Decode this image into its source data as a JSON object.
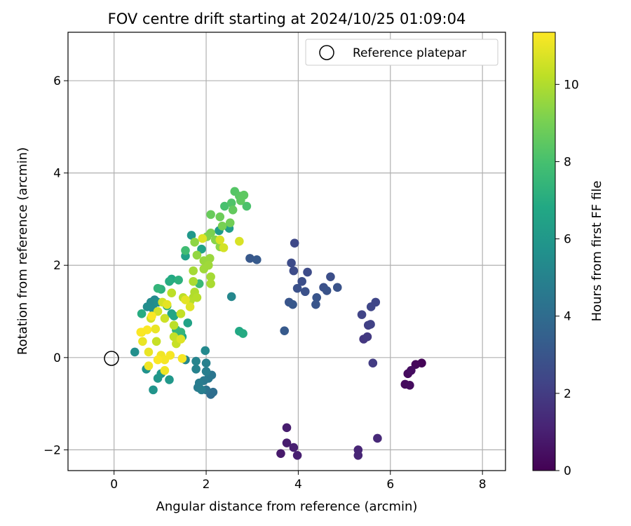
{
  "chart_data": {
    "type": "scatter",
    "title": "FOV centre drift starting at 2024/10/25 01:09:04",
    "xlabel": "Angular distance from reference (arcmin)",
    "ylabel": "Rotation from reference (arcmin)",
    "xlim": [
      -1,
      8.5
    ],
    "ylim": [
      -2.45,
      7.05
    ],
    "xticks": [
      0,
      2,
      4,
      6,
      8
    ],
    "yticks": [
      -2,
      0,
      2,
      4,
      6
    ],
    "xtick_labels": [
      "0",
      "2",
      "4",
      "6",
      "8"
    ],
    "ytick_labels": [
      "−2",
      "0",
      "2",
      "4",
      "6"
    ],
    "grid": true,
    "legend": {
      "position": "top-right",
      "entries": [
        "Reference platepar"
      ]
    },
    "reference_point": {
      "x": 0,
      "y": 0,
      "label": "Reference platepar"
    },
    "colorbar": {
      "label": "Hours from first FF file",
      "colormap": "viridis",
      "range": [
        0,
        11.35
      ],
      "ticks": [
        0,
        2,
        4,
        6,
        8,
        10
      ],
      "tick_labels": [
        "0",
        "2",
        "4",
        "6",
        "8",
        "10"
      ]
    },
    "color_variable": "hours",
    "points": [
      {
        "x": 6.68,
        "y": -0.12,
        "h": 0.1
      },
      {
        "x": 6.55,
        "y": -0.15,
        "h": 0.2
      },
      {
        "x": 6.38,
        "y": -0.35,
        "h": 0.3
      },
      {
        "x": 6.32,
        "y": -0.58,
        "h": 0.3
      },
      {
        "x": 6.42,
        "y": -0.6,
        "h": 0.35
      },
      {
        "x": 6.45,
        "y": -0.28,
        "h": 0.4
      },
      {
        "x": 3.62,
        "y": -2.08,
        "h": 0.8
      },
      {
        "x": 3.75,
        "y": -1.52,
        "h": 0.9
      },
      {
        "x": 3.75,
        "y": -1.85,
        "h": 0.9
      },
      {
        "x": 3.9,
        "y": -1.95,
        "h": 1.0
      },
      {
        "x": 3.98,
        "y": -2.12,
        "h": 1.0
      },
      {
        "x": 5.3,
        "y": -2.0,
        "h": 1.2
      },
      {
        "x": 5.3,
        "y": -2.12,
        "h": 1.2
      },
      {
        "x": 5.72,
        "y": -1.75,
        "h": 1.3
      },
      {
        "x": 5.42,
        "y": 0.4,
        "h": 1.8
      },
      {
        "x": 5.5,
        "y": 0.45,
        "h": 1.9
      },
      {
        "x": 5.62,
        "y": -0.12,
        "h": 2.0
      },
      {
        "x": 5.52,
        "y": 0.7,
        "h": 2.1
      },
      {
        "x": 5.57,
        "y": 0.72,
        "h": 2.2
      },
      {
        "x": 5.38,
        "y": 0.93,
        "h": 2.3
      },
      {
        "x": 5.58,
        "y": 1.1,
        "h": 2.4
      },
      {
        "x": 5.68,
        "y": 1.2,
        "h": 2.4
      },
      {
        "x": 3.92,
        "y": 2.48,
        "h": 2.5
      },
      {
        "x": 3.85,
        "y": 2.05,
        "h": 2.6
      },
      {
        "x": 3.9,
        "y": 1.88,
        "h": 2.6
      },
      {
        "x": 4.2,
        "y": 1.85,
        "h": 2.6
      },
      {
        "x": 4.08,
        "y": 1.65,
        "h": 2.7
      },
      {
        "x": 4.7,
        "y": 1.75,
        "h": 2.7
      },
      {
        "x": 3.98,
        "y": 1.5,
        "h": 2.8
      },
      {
        "x": 4.15,
        "y": 1.43,
        "h": 2.8
      },
      {
        "x": 4.55,
        "y": 1.52,
        "h": 2.8
      },
      {
        "x": 4.62,
        "y": 1.45,
        "h": 2.9
      },
      {
        "x": 4.85,
        "y": 1.52,
        "h": 2.9
      },
      {
        "x": 4.4,
        "y": 1.3,
        "h": 3.0
      },
      {
        "x": 4.38,
        "y": 1.15,
        "h": 3.0
      },
      {
        "x": 3.8,
        "y": 1.2,
        "h": 3.0
      },
      {
        "x": 3.88,
        "y": 1.15,
        "h": 3.1
      },
      {
        "x": 2.95,
        "y": 2.15,
        "h": 3.1
      },
      {
        "x": 3.1,
        "y": 2.12,
        "h": 3.2
      },
      {
        "x": 3.7,
        "y": 0.58,
        "h": 3.2
      },
      {
        "x": 2.1,
        "y": -0.8,
        "h": 4.0
      },
      {
        "x": 2.15,
        "y": -0.75,
        "h": 4.1
      },
      {
        "x": 2.0,
        "y": -0.7,
        "h": 4.3
      },
      {
        "x": 2.12,
        "y": -0.38,
        "h": 4.4
      },
      {
        "x": 2.05,
        "y": -0.45,
        "h": 4.5
      },
      {
        "x": 1.95,
        "y": -0.5,
        "h": 4.6
      },
      {
        "x": 1.85,
        "y": -0.55,
        "h": 4.7
      },
      {
        "x": 1.82,
        "y": -0.65,
        "h": 4.7
      },
      {
        "x": 1.9,
        "y": -0.7,
        "h": 4.8
      },
      {
        "x": 2.0,
        "y": -0.3,
        "h": 4.8
      },
      {
        "x": 2.0,
        "y": -0.12,
        "h": 4.9
      },
      {
        "x": 1.78,
        "y": -0.25,
        "h": 5.0
      },
      {
        "x": 1.78,
        "y": -0.08,
        "h": 5.1
      },
      {
        "x": 1.55,
        "y": -0.05,
        "h": 5.2
      },
      {
        "x": 2.55,
        "y": 1.32,
        "h": 5.2
      },
      {
        "x": 1.98,
        "y": 0.15,
        "h": 5.3
      },
      {
        "x": 0.88,
        "y": 1.25,
        "h": 5.3
      },
      {
        "x": 0.8,
        "y": 1.2,
        "h": 5.4
      },
      {
        "x": 0.72,
        "y": 1.1,
        "h": 5.5
      },
      {
        "x": 0.85,
        "y": 1.05,
        "h": 5.5
      },
      {
        "x": 0.95,
        "y": 1.2,
        "h": 5.6
      },
      {
        "x": 0.45,
        "y": 0.12,
        "h": 5.6
      },
      {
        "x": 0.7,
        "y": -0.25,
        "h": 5.7
      },
      {
        "x": 0.85,
        "y": -0.7,
        "h": 5.8
      },
      {
        "x": 0.95,
        "y": -0.45,
        "h": 5.9
      },
      {
        "x": 1.02,
        "y": -0.35,
        "h": 6.0
      },
      {
        "x": 1.2,
        "y": -0.48,
        "h": 6.0
      },
      {
        "x": 1.68,
        "y": 2.65,
        "h": 6.0
      },
      {
        "x": 2.28,
        "y": 2.75,
        "h": 6.2
      },
      {
        "x": 2.5,
        "y": 2.8,
        "h": 6.3
      },
      {
        "x": 1.55,
        "y": 2.2,
        "h": 6.4
      },
      {
        "x": 1.9,
        "y": 2.35,
        "h": 6.5
      },
      {
        "x": 1.6,
        "y": 0.75,
        "h": 6.5
      },
      {
        "x": 1.25,
        "y": 0.95,
        "h": 6.6
      },
      {
        "x": 1.3,
        "y": 0.9,
        "h": 6.7
      },
      {
        "x": 1.48,
        "y": 0.45,
        "h": 6.7
      },
      {
        "x": 1.25,
        "y": 1.7,
        "h": 6.8
      },
      {
        "x": 2.72,
        "y": 0.57,
        "h": 6.8
      },
      {
        "x": 2.8,
        "y": 0.52,
        "h": 6.9
      },
      {
        "x": 0.6,
        "y": 0.95,
        "h": 7.0
      },
      {
        "x": 1.2,
        "y": 1.65,
        "h": 7.0
      },
      {
        "x": 1.15,
        "y": 1.12,
        "h": 7.1
      },
      {
        "x": 1.02,
        "y": 1.48,
        "h": 7.2
      },
      {
        "x": 1.4,
        "y": 1.68,
        "h": 7.2
      },
      {
        "x": 0.95,
        "y": 1.5,
        "h": 7.4
      },
      {
        "x": 1.45,
        "y": 0.55,
        "h": 7.4
      },
      {
        "x": 1.35,
        "y": 0.6,
        "h": 7.5
      },
      {
        "x": 1.85,
        "y": 1.6,
        "h": 7.6
      },
      {
        "x": 1.55,
        "y": 2.32,
        "h": 7.8
      },
      {
        "x": 2.4,
        "y": 3.28,
        "h": 8.0
      },
      {
        "x": 2.88,
        "y": 3.28,
        "h": 8.1
      },
      {
        "x": 2.55,
        "y": 3.35,
        "h": 8.2
      },
      {
        "x": 2.62,
        "y": 3.6,
        "h": 8.3
      },
      {
        "x": 2.72,
        "y": 3.5,
        "h": 8.4
      },
      {
        "x": 2.82,
        "y": 3.52,
        "h": 8.5
      },
      {
        "x": 2.75,
        "y": 3.4,
        "h": 8.5
      },
      {
        "x": 2.58,
        "y": 3.2,
        "h": 8.6
      },
      {
        "x": 2.1,
        "y": 3.1,
        "h": 8.7
      },
      {
        "x": 2.3,
        "y": 3.05,
        "h": 8.8
      },
      {
        "x": 2.52,
        "y": 2.92,
        "h": 8.9
      },
      {
        "x": 2.35,
        "y": 2.85,
        "h": 9.0
      },
      {
        "x": 2.1,
        "y": 2.7,
        "h": 9.1
      },
      {
        "x": 2.02,
        "y": 2.62,
        "h": 9.2
      },
      {
        "x": 2.2,
        "y": 2.55,
        "h": 9.3
      },
      {
        "x": 2.3,
        "y": 2.4,
        "h": 9.4
      },
      {
        "x": 1.75,
        "y": 2.5,
        "h": 9.4
      },
      {
        "x": 1.8,
        "y": 2.22,
        "h": 9.5
      },
      {
        "x": 1.95,
        "y": 2.1,
        "h": 9.6
      },
      {
        "x": 2.08,
        "y": 2.15,
        "h": 9.6
      },
      {
        "x": 2.05,
        "y": 2.0,
        "h": 9.7
      },
      {
        "x": 1.95,
        "y": 1.92,
        "h": 9.7
      },
      {
        "x": 1.72,
        "y": 1.88,
        "h": 9.8
      },
      {
        "x": 2.1,
        "y": 1.75,
        "h": 9.8
      },
      {
        "x": 1.72,
        "y": 1.65,
        "h": 9.9
      },
      {
        "x": 2.1,
        "y": 1.6,
        "h": 9.9
      },
      {
        "x": 1.75,
        "y": 1.42,
        "h": 10.0
      },
      {
        "x": 1.72,
        "y": 1.3,
        "h": 10.0
      },
      {
        "x": 1.65,
        "y": 1.22,
        "h": 10.1
      },
      {
        "x": 1.8,
        "y": 1.3,
        "h": 10.1
      },
      {
        "x": 1.5,
        "y": 1.3,
        "h": 10.2
      },
      {
        "x": 1.25,
        "y": 1.4,
        "h": 10.2
      },
      {
        "x": 1.3,
        "y": 0.7,
        "h": 10.2
      },
      {
        "x": 1.45,
        "y": 0.95,
        "h": 10.3
      },
      {
        "x": 1.3,
        "y": 0.45,
        "h": 10.3
      },
      {
        "x": 1.35,
        "y": 0.3,
        "h": 10.4
      },
      {
        "x": 0.92,
        "y": 0.35,
        "h": 10.4
      },
      {
        "x": 0.8,
        "y": 0.85,
        "h": 10.5
      },
      {
        "x": 1.1,
        "y": 0.85,
        "h": 10.5
      },
      {
        "x": 0.95,
        "y": 1.0,
        "h": 10.6
      },
      {
        "x": 1.05,
        "y": 1.2,
        "h": 10.6
      },
      {
        "x": 2.38,
        "y": 2.38,
        "h": 10.6
      },
      {
        "x": 2.72,
        "y": 2.52,
        "h": 10.7
      },
      {
        "x": 2.3,
        "y": 2.55,
        "h": 10.7
      },
      {
        "x": 1.92,
        "y": 2.58,
        "h": 10.8
      },
      {
        "x": 1.45,
        "y": 0.4,
        "h": 10.8
      },
      {
        "x": 1.65,
        "y": 1.1,
        "h": 10.8
      },
      {
        "x": 1.55,
        "y": 1.25,
        "h": 10.9
      },
      {
        "x": 1.15,
        "y": 1.15,
        "h": 10.9
      },
      {
        "x": 0.6,
        "y": 0.55,
        "h": 11.0
      },
      {
        "x": 0.9,
        "y": 0.62,
        "h": 11.0
      },
      {
        "x": 0.62,
        "y": 0.35,
        "h": 11.0
      },
      {
        "x": 0.75,
        "y": 0.12,
        "h": 11.0
      },
      {
        "x": 0.75,
        "y": -0.18,
        "h": 11.1
      },
      {
        "x": 1.1,
        "y": -0.28,
        "h": 11.1
      },
      {
        "x": 1.02,
        "y": 0.05,
        "h": 11.1
      },
      {
        "x": 1.22,
        "y": 0.05,
        "h": 11.2
      },
      {
        "x": 1.48,
        "y": -0.02,
        "h": 11.2
      },
      {
        "x": 1.1,
        "y": -0.05,
        "h": 11.2
      },
      {
        "x": 0.95,
        "y": -0.05,
        "h": 11.3
      },
      {
        "x": 0.58,
        "y": 0.55,
        "h": 11.3
      },
      {
        "x": 0.72,
        "y": 0.6,
        "h": 11.3
      },
      {
        "x": 0.82,
        "y": 0.9,
        "h": 11.3
      }
    ]
  }
}
